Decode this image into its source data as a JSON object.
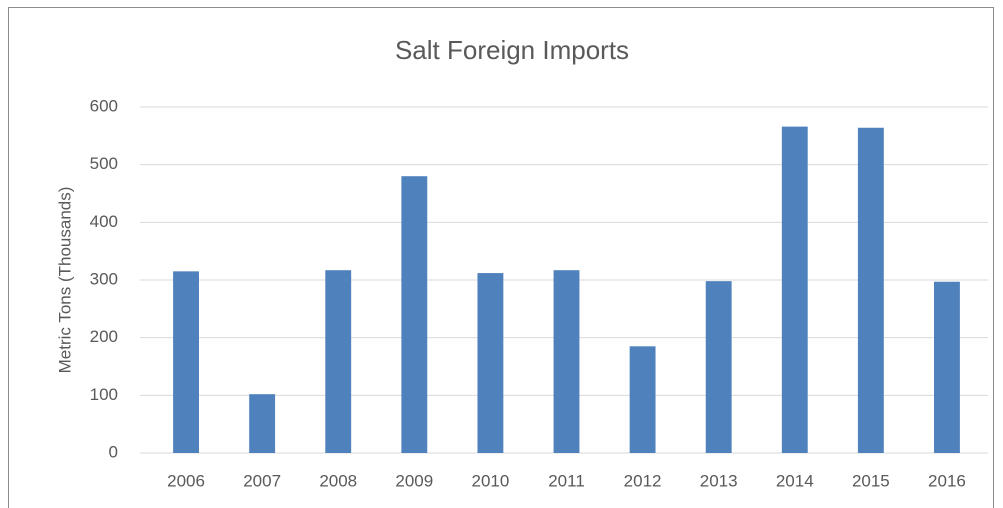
{
  "chart_data": {
    "type": "bar",
    "title": "Salt Foreign Imports",
    "y_label": "Metric Tons (Thousands)",
    "categories": [
      "2006",
      "2007",
      "2008",
      "2009",
      "2010",
      "2011",
      "2012",
      "2013",
      "2014",
      "2015",
      "2016"
    ],
    "values": [
      315,
      102,
      317,
      480,
      312,
      317,
      185,
      298,
      566,
      564,
      297
    ],
    "color": "#4f81bd",
    "ylim": [
      0,
      600
    ],
    "yticks": [
      0,
      100,
      200,
      300,
      400,
      500,
      600
    ],
    "grid": true
  }
}
